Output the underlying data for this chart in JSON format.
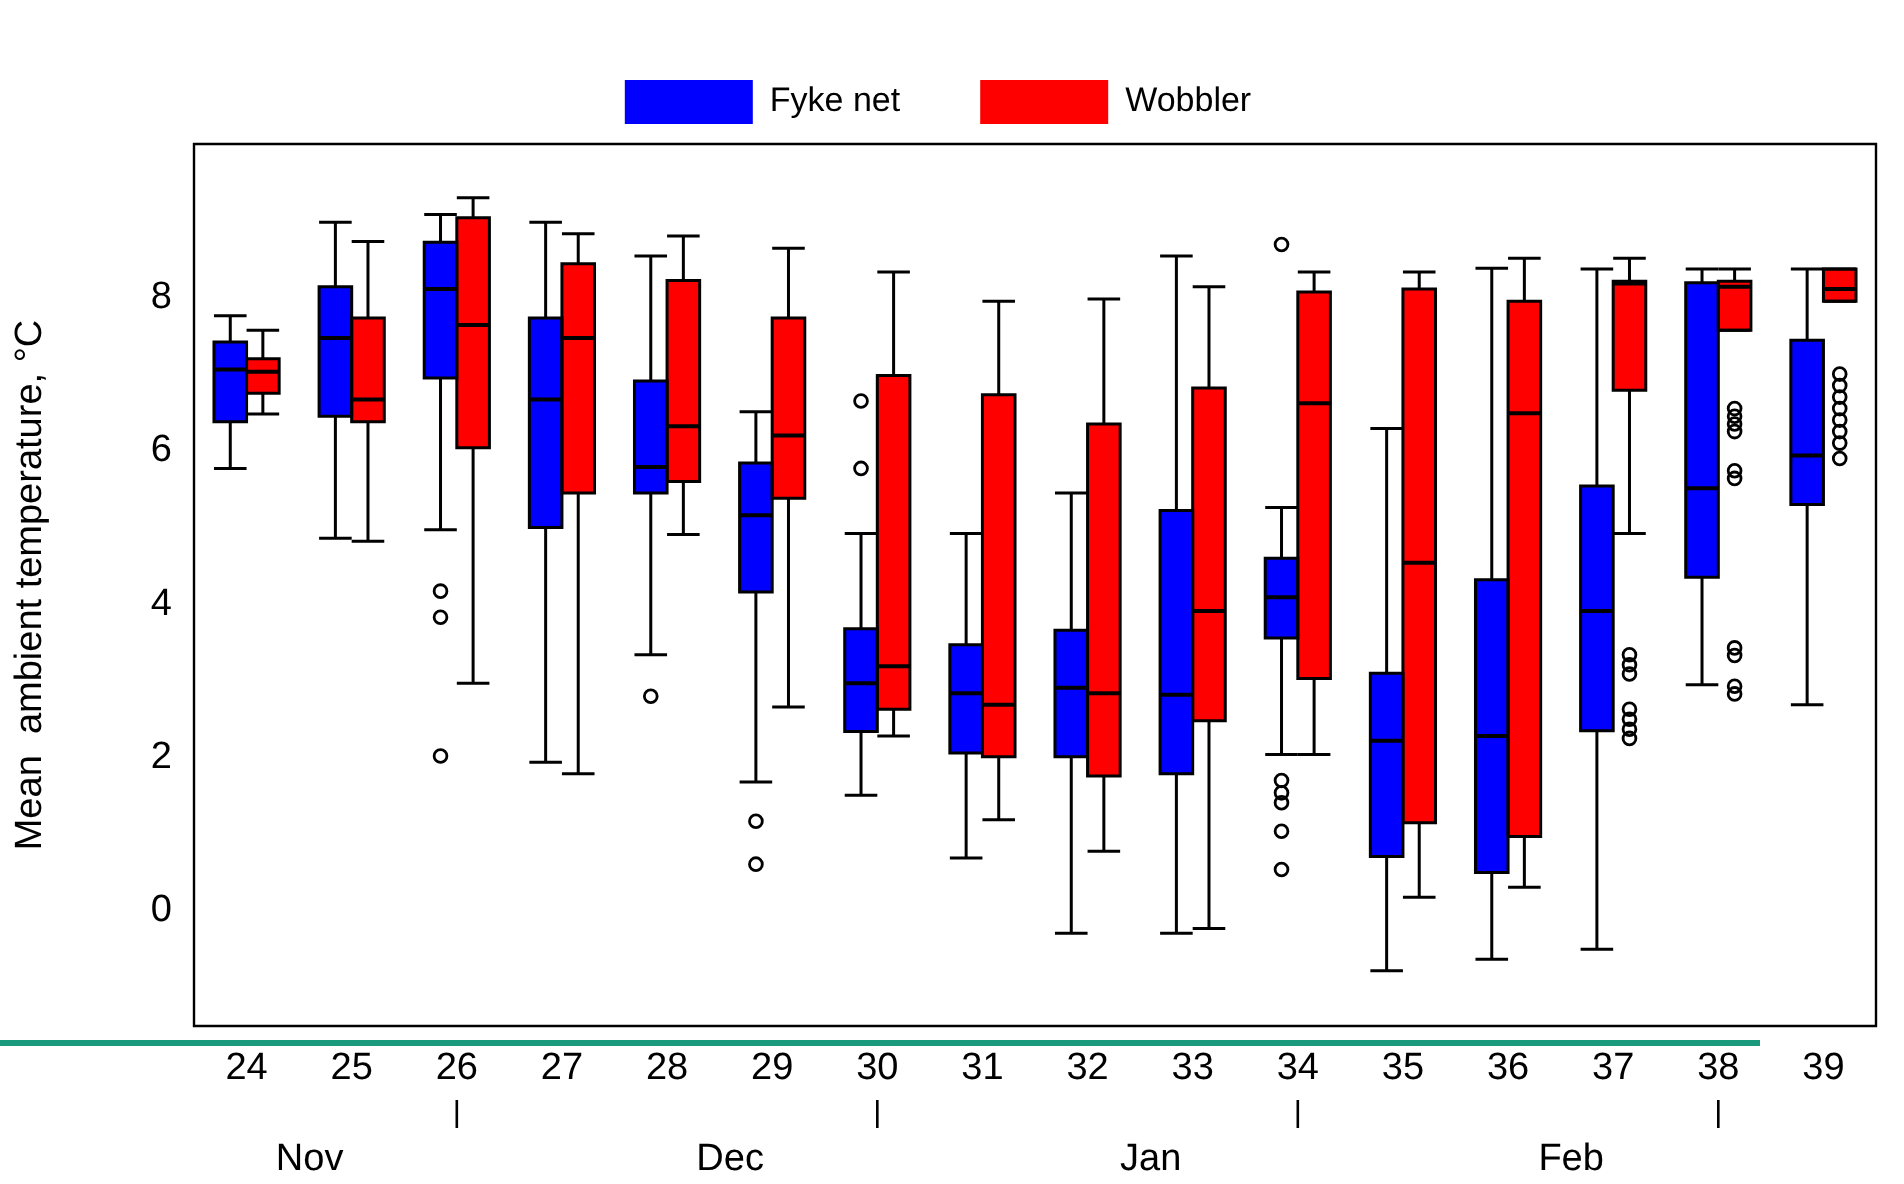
{
  "chart_data": {
    "type": "box",
    "ylabel": "Mean  ambient temperature, °C",
    "categories": [
      "24",
      "25",
      "26",
      "27",
      "28",
      "29",
      "30",
      "31",
      "32",
      "33",
      "34",
      "35",
      "36",
      "37",
      "38",
      "39"
    ],
    "ylim": [
      -1.5,
      10
    ],
    "yticks": [
      0,
      2,
      4,
      6,
      8
    ],
    "grid": false,
    "legend": "top",
    "annotations": [
      "Nov",
      "Dec",
      "Jan",
      "Feb"
    ],
    "series": [
      {
        "name": "Fyke net",
        "color": "#0000ff",
        "boxes": [
          {
            "low": 5.77,
            "q1": 6.38,
            "median": 7.06,
            "q3": 7.42,
            "high": 7.76
          },
          {
            "low": 4.86,
            "q1": 6.45,
            "median": 7.47,
            "q3": 8.14,
            "high": 8.98
          },
          {
            "low": 4.97,
            "q1": 6.95,
            "median": 8.11,
            "q3": 8.72,
            "high": 9.08,
            "outliers": [
              4.17,
              3.83,
              2.02
            ]
          },
          {
            "low": 1.94,
            "q1": 5.0,
            "median": 6.67,
            "q3": 7.73,
            "high": 8.98
          },
          {
            "low": 3.34,
            "q1": 5.45,
            "median": 5.79,
            "q3": 6.91,
            "high": 8.54,
            "outliers": [
              2.8
            ]
          },
          {
            "low": 1.68,
            "q1": 4.16,
            "median": 5.16,
            "q3": 5.84,
            "high": 6.51,
            "outliers": [
              1.17,
              0.61
            ]
          },
          {
            "low": 1.51,
            "q1": 2.34,
            "median": 2.97,
            "q3": 3.68,
            "high": 4.92,
            "outliers": [
              6.65,
              5.77
            ]
          },
          {
            "low": 0.69,
            "q1": 2.06,
            "median": 2.84,
            "q3": 3.47,
            "high": 4.92
          },
          {
            "low": -0.29,
            "q1": 2.01,
            "median": 2.91,
            "q3": 3.66,
            "high": 5.45
          },
          {
            "low": -0.29,
            "q1": 1.79,
            "median": 2.82,
            "q3": 5.22,
            "high": 8.54
          },
          {
            "low": 2.04,
            "q1": 3.56,
            "median": 4.09,
            "q3": 4.6,
            "high": 5.26,
            "outliers": [
              8.69,
              1.7,
              1.54,
              1.41,
              1.04,
              0.54
            ]
          },
          {
            "low": -0.78,
            "q1": 0.71,
            "median": 2.22,
            "q3": 3.1,
            "high": 6.29
          },
          {
            "low": -0.63,
            "q1": 0.5,
            "median": 2.28,
            "q3": 4.32,
            "high": 8.38
          },
          {
            "low": -0.5,
            "q1": 2.35,
            "median": 3.91,
            "q3": 5.54,
            "high": 8.37
          },
          {
            "low": 2.95,
            "q1": 4.35,
            "median": 5.51,
            "q3": 8.19,
            "high": 8.37
          },
          {
            "low": 2.69,
            "q1": 5.3,
            "median": 5.94,
            "q3": 7.44,
            "high": 8.37
          }
        ]
      },
      {
        "name": "Wobbler",
        "color": "#ff0000",
        "boxes": [
          {
            "low": 6.48,
            "q1": 6.75,
            "median": 7.03,
            "q3": 7.2,
            "high": 7.57
          },
          {
            "low": 4.82,
            "q1": 6.38,
            "median": 6.67,
            "q3": 7.73,
            "high": 8.73
          },
          {
            "low": 2.97,
            "q1": 6.04,
            "median": 7.64,
            "q3": 9.04,
            "high": 9.3
          },
          {
            "low": 1.79,
            "q1": 5.45,
            "median": 7.47,
            "q3": 8.44,
            "high": 8.83
          },
          {
            "low": 4.91,
            "q1": 5.6,
            "median": 6.32,
            "q3": 8.22,
            "high": 8.8
          },
          {
            "low": 2.66,
            "q1": 5.38,
            "median": 6.2,
            "q3": 7.73,
            "high": 8.64
          },
          {
            "low": 2.28,
            "q1": 2.63,
            "median": 3.19,
            "q3": 6.98,
            "high": 8.33
          },
          {
            "low": 1.19,
            "q1": 2.01,
            "median": 2.69,
            "q3": 6.73,
            "high": 7.95
          },
          {
            "low": 0.78,
            "q1": 1.76,
            "median": 2.84,
            "q3": 6.35,
            "high": 7.98
          },
          {
            "low": -0.23,
            "q1": 2.48,
            "median": 3.91,
            "q3": 6.82,
            "high": 8.14
          },
          {
            "low": 2.04,
            "q1": 3.03,
            "median": 6.62,
            "q3": 8.07,
            "high": 8.33
          },
          {
            "low": 0.18,
            "q1": 1.15,
            "median": 4.54,
            "q3": 8.11,
            "high": 8.33
          },
          {
            "low": 0.31,
            "q1": 0.97,
            "median": 6.49,
            "q3": 7.95,
            "high": 8.51
          },
          {
            "low": 4.92,
            "q1": 6.79,
            "median": 8.18,
            "q3": 8.21,
            "high": 8.51,
            "outliers": [
              3.34,
              3.21,
              3.09,
              2.63,
              2.5,
              2.37,
              2.25
            ]
          },
          {
            "low": 7.57,
            "q1": 7.57,
            "median": 8.14,
            "q3": 8.21,
            "high": 8.37,
            "outliers": [
              6.55,
              6.45,
              6.35,
              6.25,
              5.74,
              5.64,
              3.43,
              3.33,
              2.93,
              2.83
            ]
          },
          {
            "low": 7.95,
            "q1": 7.95,
            "median": 8.11,
            "q3": 8.37,
            "high": 8.37,
            "outliers": [
              7.0,
              6.85,
              6.7,
              6.55,
              6.4,
              6.25,
              6.1,
              5.9
            ]
          }
        ]
      }
    ]
  }
}
